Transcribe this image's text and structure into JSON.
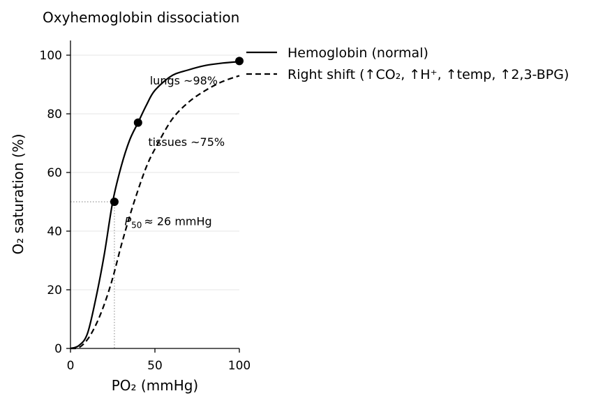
{
  "chart_data": {
    "type": "line",
    "title": "Oxyhemoglobin dissociation",
    "xlabel": "PO₂ (mmHg)",
    "ylabel": "O₂ saturation (%)",
    "xlim": [
      0,
      100
    ],
    "ylim": [
      0,
      105
    ],
    "xticks": [
      0,
      50,
      100
    ],
    "yticks": [
      0,
      20,
      40,
      60,
      80,
      100
    ],
    "grid": "horizontal",
    "legend_placement": "outside-right",
    "series": [
      {
        "name": "Hemoglobin (normal)",
        "style": "solid",
        "color": "#000000",
        "x": [
          0,
          5,
          10,
          15,
          20,
          25,
          30,
          35,
          40,
          45,
          50,
          60,
          70,
          80,
          90,
          100
        ],
        "y": [
          0,
          1,
          5,
          17,
          32,
          50,
          62,
          71,
          77,
          83,
          88,
          93,
          95,
          96.5,
          97.3,
          97.8
        ]
      },
      {
        "name": "Right shift (↑CO₂, ↑H⁺, ↑temp, ↑2,3-BPG)",
        "style": "dashed",
        "color": "#000000",
        "x": [
          0,
          5,
          10,
          15,
          20,
          25,
          30,
          35,
          40,
          45,
          50,
          60,
          70,
          80,
          90,
          100
        ],
        "y": [
          0,
          0.3,
          3,
          8,
          15,
          24,
          35,
          45,
          54,
          62,
          68,
          78,
          84,
          88,
          91,
          93
        ]
      }
    ],
    "points": [
      {
        "x": 26,
        "y": 50
      },
      {
        "x": 40,
        "y": 77
      },
      {
        "x": 100,
        "y": 98
      }
    ],
    "reference_lines": {
      "x": 26,
      "y": 50,
      "style": "dotted",
      "color": "#999999"
    },
    "annotations": [
      {
        "text": "lungs ~98%",
        "x": 47,
        "y": 90
      },
      {
        "text": "tissues ~75%",
        "x": 46,
        "y": 69
      },
      {
        "text": "P",
        "sub": "50",
        "tail": "≈ 26 mmHg",
        "x": 32,
        "y": 42
      }
    ]
  }
}
